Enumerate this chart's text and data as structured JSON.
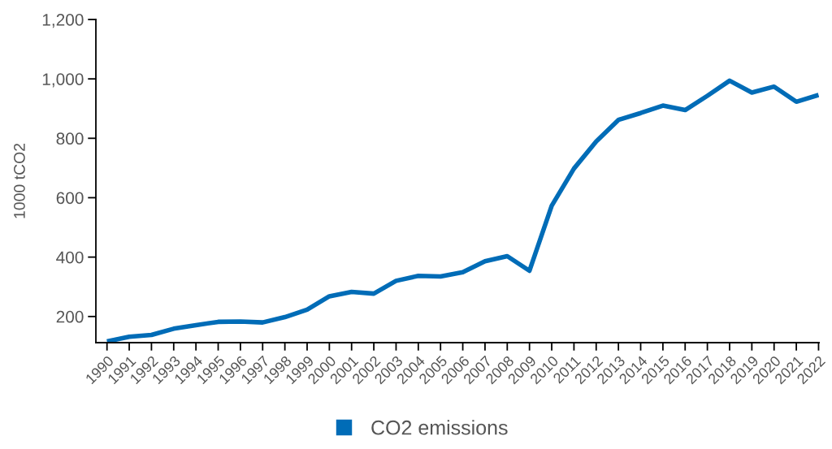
{
  "chart_data": {
    "type": "line",
    "ylabel": "1000 tCO2",
    "categories": [
      "1990",
      "1991",
      "1992",
      "1993",
      "1994",
      "1995",
      "1996",
      "1997",
      "1998",
      "1999",
      "2000",
      "2001",
      "2002",
      "2003",
      "2004",
      "2005",
      "2006",
      "2007",
      "2008",
      "2009",
      "2010",
      "2011",
      "2012",
      "2013",
      "2014",
      "2015",
      "2016",
      "2017",
      "2018",
      "2019",
      "2020",
      "2021",
      "2022"
    ],
    "series": [
      {
        "name": "CO2 emissions",
        "color": "#006cb7",
        "values": [
          116,
          132,
          138,
          159,
          171,
          182,
          183,
          180,
          198,
          223,
          268,
          283,
          277,
          320,
          337,
          335,
          349,
          386,
          403,
          354,
          573,
          698,
          789,
          862,
          885,
          910,
          895,
          943,
          994,
          954,
          974,
          923,
          946
        ]
      }
    ],
    "ylim": [
      112,
      1200
    ],
    "yticks": [
      200,
      400,
      600,
      800,
      {
        "value": 1000,
        "label": "1,000"
      },
      {
        "value": 1200,
        "label": "1,200"
      }
    ],
    "grid": false,
    "legend": "bottom",
    "marker": "none",
    "line_style": "solid"
  }
}
